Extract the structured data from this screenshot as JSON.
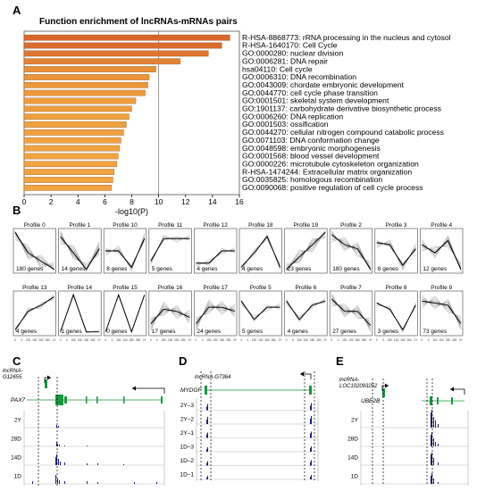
{
  "panel_a": {
    "letter": "A",
    "chart_data": {
      "type": "bar",
      "orientation": "horizontal",
      "title": "Function enrichment of lncRNAs-mRNAs pairs",
      "xlabel": "-log10(P)",
      "xlim": [
        0,
        16
      ],
      "xticks": [
        0,
        2,
        4,
        6,
        8,
        10,
        12,
        14,
        16
      ],
      "reference_line": 10,
      "categories": [
        "R-HSA-8868773: rRNA processing in the nucleus and cytosol",
        "R-HSA-1640170: Cell Cycle",
        "GO:0000280: nuclear division",
        "GO:0006281: DNA repair",
        "hsa04110: Cell cycle",
        "GO:0006310: DNA recombination",
        "GO:0043009: chordate embryonic development",
        "GO:0044770: cell cycle phase transition",
        "GO:0001501: skeletal system development",
        "GO:1901137: carbohydrate derivative biosynthetic process",
        "GO:0006260: DNA replication",
        "GO:0001503: ossification",
        "GO:0044270: cellular nitrogen compound catabolic process",
        "GO:0071103: DNA conformation change",
        "GO:0048598: embryonic morphogenesis",
        "GO:0001568: blood vessel development",
        "GO:0000226: microtubule cytoskeleton organization",
        "R-HSA-1474244: Extracellular matrix organization",
        "GO:0035825: homologous recombination",
        "GO:0090068: positive regulation of cell cycle process"
      ],
      "values": [
        15.3,
        14.7,
        13.7,
        11.6,
        9.8,
        9.3,
        9.2,
        9.0,
        8.3,
        8.0,
        7.8,
        7.6,
        7.4,
        7.2,
        7.1,
        7.0,
        6.9,
        6.7,
        6.6,
        6.5
      ],
      "bar_colors": [
        "#d9652b",
        "#db6a2d",
        "#df7430",
        "#e48234",
        "#ea9038",
        "#ec9539",
        "#ed973a",
        "#ee993b",
        "#ef9c3c",
        "#ef9e3d",
        "#f09f3d",
        "#f0a03e",
        "#f1a13e",
        "#f1a23f",
        "#f1a23f",
        "#f2a33f",
        "#f2a33f",
        "#f2a43f",
        "#f2a440",
        "#f2a440"
      ]
    }
  },
  "panel_b": {
    "letter": "B",
    "x_tick_labels": [
      "0",
      "0",
      "150",
      "150",
      "280",
      "280",
      "2Y"
    ],
    "line_color": "#a0a0a0",
    "mean_color": "#000000",
    "rows": [
      [
        {
          "name": "Profile 0",
          "genes": "180 genes",
          "shape": [
            0.05,
            0.55,
            0.75,
            0.95
          ]
        },
        {
          "name": "Profile 1",
          "genes": "14 genes",
          "shape": [
            0.15,
            0.55,
            0.95,
            0.45
          ]
        },
        {
          "name": "Profile 10",
          "genes": "8 genes",
          "shape": [
            0.5,
            0.5,
            0.9,
            0.2
          ]
        },
        {
          "name": "Profile 11",
          "genes": "5 genes",
          "shape": [
            0.75,
            0.2,
            0.2,
            0.2
          ]
        },
        {
          "name": "Profile 12",
          "genes": "4 genes",
          "shape": [
            0.8,
            0.8,
            0.5,
            0.5
          ]
        },
        {
          "name": "Profile 18",
          "genes": "4 genes",
          "shape": [
            0.9,
            0.55,
            0.15,
            0.9
          ]
        },
        {
          "name": "Profile 19",
          "genes": "23 genes",
          "shape": [
            0.95,
            0.65,
            0.35,
            0.05
          ]
        },
        {
          "name": "Profile 2",
          "genes": "180 genes",
          "shape": [
            0.1,
            0.35,
            0.45,
            0.95
          ]
        },
        {
          "name": "Profile 3",
          "genes": "8 genes",
          "shape": [
            0.3,
            0.35,
            0.85,
            0.45
          ]
        },
        {
          "name": "Profile 4",
          "genes": "12 genes",
          "shape": [
            0.35,
            0.55,
            0.25,
            0.95
          ]
        }
      ],
      [
        {
          "name": "Profile 13",
          "genes": "4 genes",
          "shape": [
            0.9,
            0.45,
            0.3,
            0.1
          ]
        },
        {
          "name": "Profile 14",
          "genes": "1 genes",
          "shape": [
            0.95,
            0.05,
            0.95,
            0.95
          ]
        },
        {
          "name": "Profile 15",
          "genes": "0 genes",
          "shape": [
            0.95,
            0.05,
            0.95,
            0.05
          ]
        },
        {
          "name": "Profile 16",
          "genes": "17 genes",
          "shape": [
            0.75,
            0.4,
            0.45,
            0.6
          ]
        },
        {
          "name": "Profile 17",
          "genes": "24 genes",
          "shape": [
            0.75,
            0.35,
            0.35,
            0.45
          ]
        },
        {
          "name": "Profile 5",
          "genes": "5 genes",
          "shape": [
            0.2,
            0.65,
            0.35,
            0.35
          ]
        },
        {
          "name": "Profile 6",
          "genes": "4 genes",
          "shape": [
            0.2,
            0.65,
            0.3,
            0.2
          ]
        },
        {
          "name": "Profile 7",
          "genes": "27 genes",
          "shape": [
            0.15,
            0.45,
            0.45,
            0.8
          ]
        },
        {
          "name": "Profile 8",
          "genes": "3 genes",
          "shape": [
            0.25,
            0.4,
            0.9,
            0.3
          ]
        },
        {
          "name": "Profile 9",
          "genes": "73 genes",
          "shape": [
            0.2,
            0.25,
            0.3,
            0.75
          ]
        }
      ]
    ]
  },
  "panel_c": {
    "letter": "C",
    "lnc_label_1": "lncRNA-",
    "lnc_label_2": "G12655",
    "gene_label": "PAX7",
    "tracks": [
      "2Y",
      "28D",
      "14D",
      "1D"
    ]
  },
  "panel_d": {
    "letter": "D",
    "lnc_label": "lncRNA-G7364",
    "gene_label": "MYDGF",
    "tracks": [
      "2Y–3",
      "2Y–2",
      "2Y–1",
      "1D–3",
      "1D–2",
      "1D–1"
    ]
  },
  "panel_e": {
    "letter": "E",
    "lnc_label_1": "lncRNA-",
    "lnc_label_2": "LOC102093252",
    "gene_label": "UBE2B",
    "tracks": [
      "2Y",
      "28D",
      "14D",
      "1D"
    ]
  },
  "colors": {
    "gene_green": "#1a9641",
    "signal_navy": "#1b1f7a",
    "gridline": "#bbbbbb",
    "reference_line": "#808080"
  }
}
